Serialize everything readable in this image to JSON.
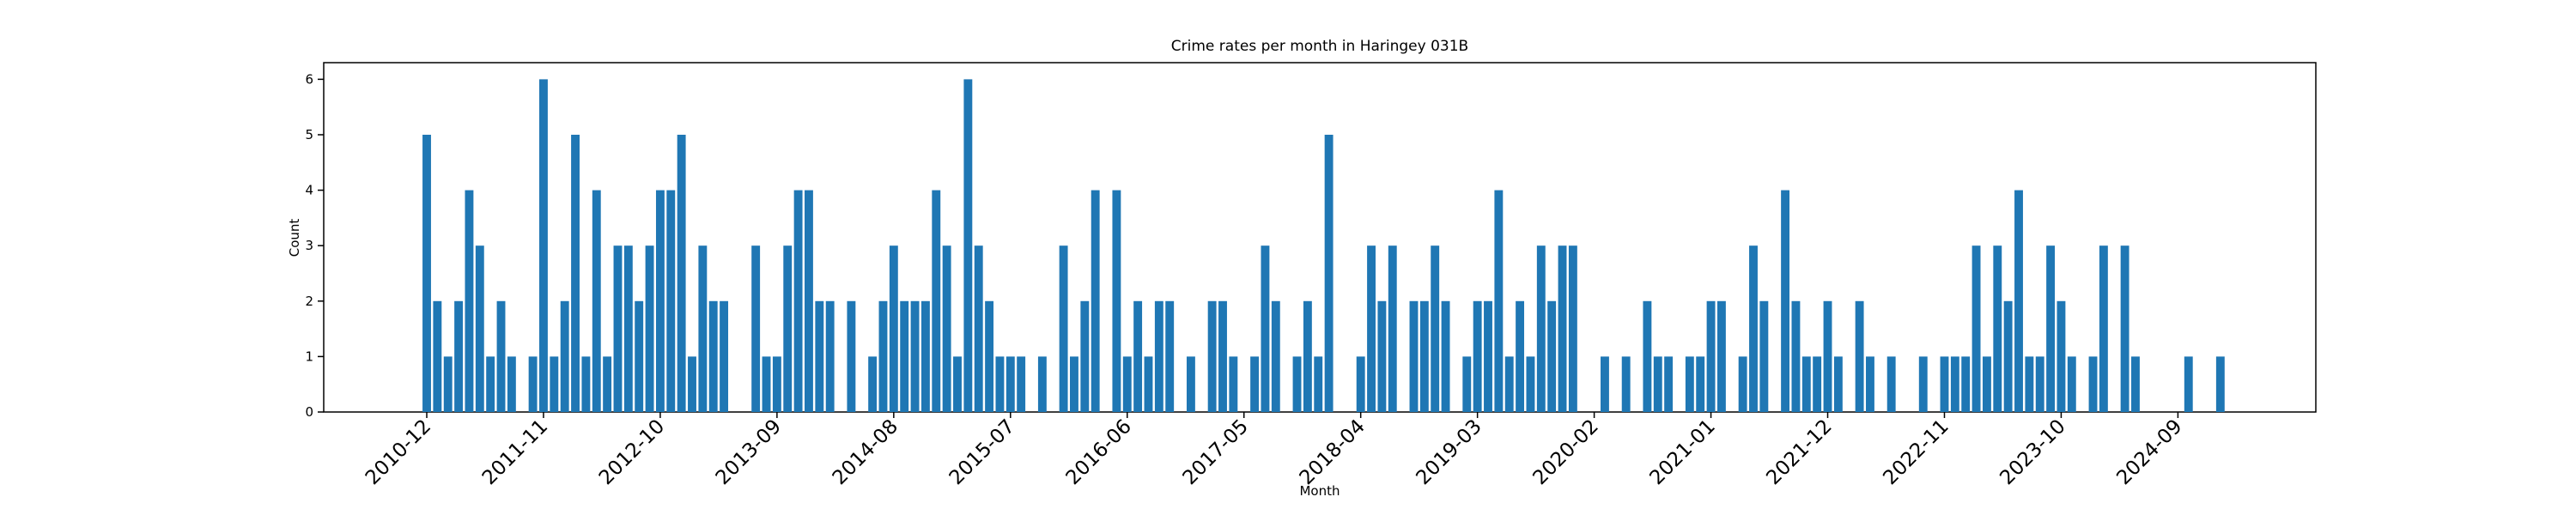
{
  "chart_data": {
    "type": "bar",
    "title": "Crime rates per month in Haringey 031B",
    "x_label": "Month",
    "y_label": "Count",
    "color": "#1f77b4",
    "categories": [
      "2010-12",
      null,
      null,
      null,
      null,
      null,
      null,
      null,
      null,
      null,
      null,
      "2011-11",
      null,
      null,
      null,
      null,
      null,
      null,
      null,
      null,
      null,
      null,
      "2012-10",
      null,
      null,
      null,
      null,
      null,
      null,
      null,
      null,
      null,
      null,
      "2013-09",
      null,
      null,
      null,
      null,
      null,
      null,
      null,
      null,
      null,
      null,
      "2014-08",
      null,
      null,
      null,
      null,
      null,
      null,
      null,
      null,
      null,
      null,
      "2015-07",
      null,
      null,
      null,
      null,
      null,
      null,
      null,
      null,
      null,
      null,
      "2016-06",
      null,
      null,
      null,
      null,
      null,
      null,
      null,
      null,
      null,
      null,
      "2017-05",
      null,
      null,
      null,
      null,
      null,
      null,
      null,
      null,
      null,
      null,
      "2018-04",
      null,
      null,
      null,
      null,
      null,
      null,
      null,
      null,
      null,
      null,
      "2019-03",
      null,
      null,
      null,
      null,
      null,
      null,
      null,
      null,
      null,
      null,
      "2020-02",
      null,
      null,
      null,
      null,
      null,
      null,
      null,
      null,
      null,
      null,
      "2021-01",
      null,
      null,
      null,
      null,
      null,
      null,
      null,
      null,
      null,
      null,
      "2021-12",
      null,
      null,
      null,
      null,
      null,
      null,
      null,
      null,
      null,
      null,
      "2022-11",
      null,
      null,
      null,
      null,
      null,
      null,
      null,
      null,
      null,
      null,
      "2023-10",
      null,
      null,
      null,
      null,
      null,
      null,
      null,
      null,
      null,
      null,
      "2024-09",
      null,
      null,
      null,
      null
    ],
    "values": [
      5,
      2,
      1,
      2,
      4,
      3,
      1,
      2,
      1,
      0,
      1,
      6,
      1,
      2,
      5,
      1,
      4,
      1,
      3,
      3,
      2,
      3,
      4,
      4,
      5,
      1,
      3,
      2,
      2,
      0,
      0,
      3,
      1,
      1,
      3,
      4,
      4,
      2,
      2,
      0,
      2,
      0,
      1,
      2,
      3,
      2,
      2,
      2,
      4,
      3,
      1,
      6,
      3,
      2,
      1,
      1,
      1,
      0,
      1,
      0,
      3,
      1,
      2,
      4,
      0,
      4,
      1,
      2,
      1,
      2,
      2,
      0,
      1,
      0,
      2,
      2,
      1,
      0,
      1,
      3,
      2,
      0,
      1,
      2,
      1,
      5,
      0,
      0,
      1,
      3,
      2,
      3,
      0,
      2,
      2,
      3,
      2,
      0,
      1,
      2,
      2,
      4,
      1,
      2,
      1,
      3,
      2,
      3,
      3,
      0,
      0,
      1,
      0,
      1,
      0,
      2,
      1,
      1,
      0,
      1,
      1,
      2,
      2,
      0,
      1,
      3,
      2,
      0,
      4,
      2,
      1,
      1,
      2,
      1,
      0,
      2,
      1,
      0,
      1,
      0,
      0,
      1,
      0,
      1,
      1,
      1,
      3,
      1,
      3,
      2,
      4,
      1,
      1,
      3,
      2,
      1,
      0,
      1,
      3,
      0,
      3,
      1,
      0,
      0,
      0,
      0,
      1,
      0,
      0,
      1
    ],
    "ylim": [
      0,
      6.3
    ],
    "yticks": [
      0,
      1,
      2,
      3,
      4,
      5,
      6
    ],
    "grid": false
  }
}
